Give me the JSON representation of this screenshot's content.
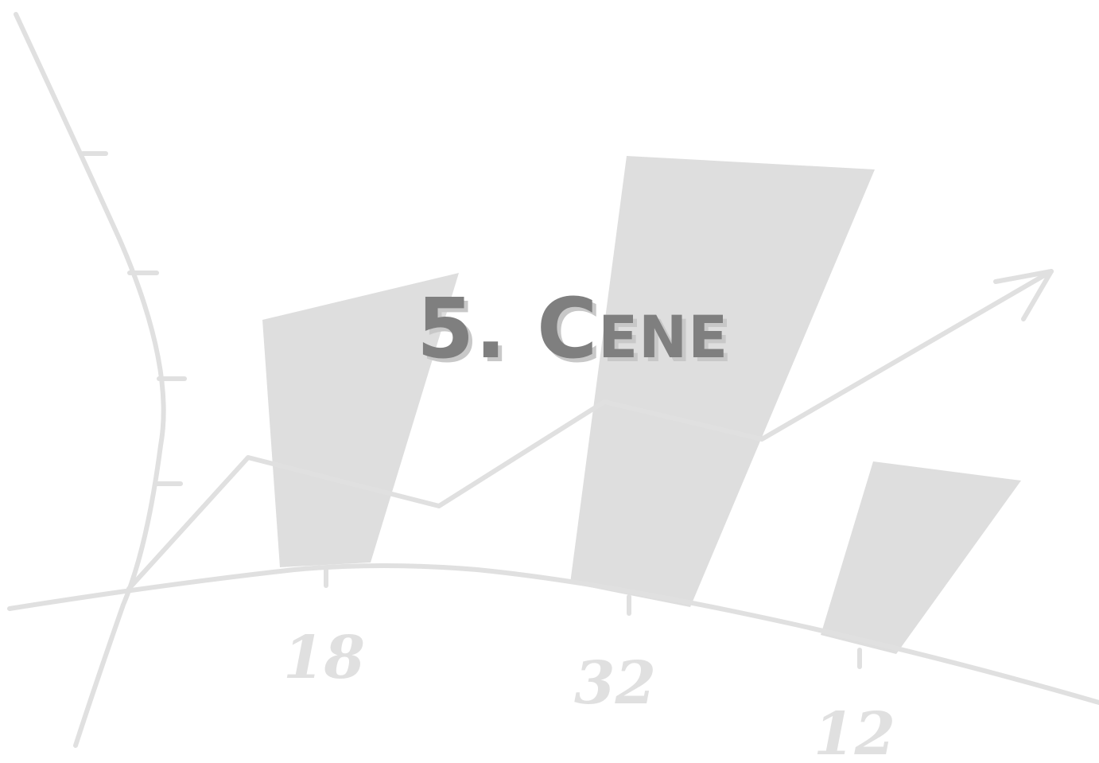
{
  "title": "5. Cene",
  "decoration": {
    "labels": [
      "18",
      "32",
      "12"
    ]
  },
  "colors": {
    "background": "#ffffff",
    "title_text": "#7f7f7f",
    "title_shadow": "#c8c8c8",
    "decoration_line": "#e0e0e0",
    "decoration_fill": "#dedede"
  }
}
